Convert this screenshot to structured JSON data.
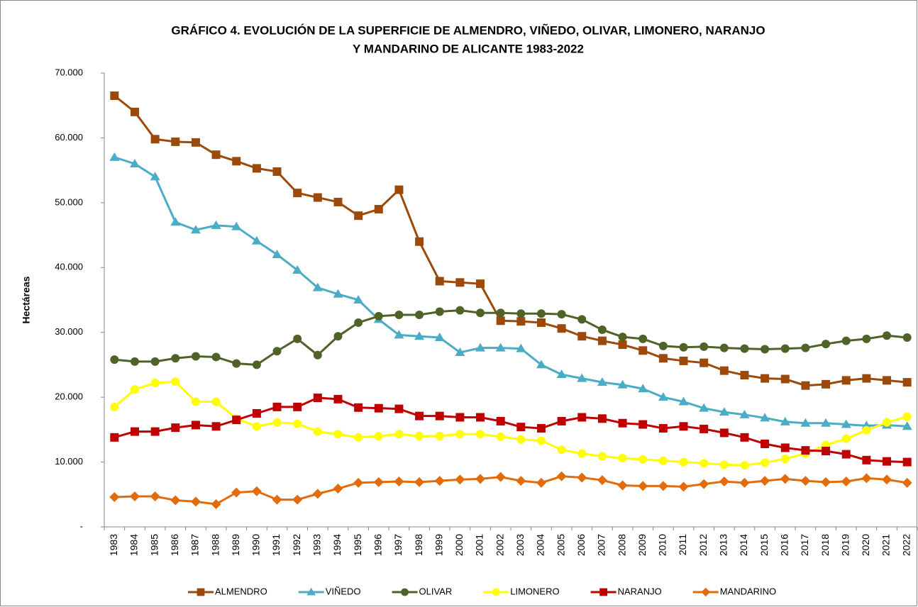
{
  "chart_data": {
    "type": "line",
    "title": [
      "GRÁFICO 4. EVOLUCIÓN DE LA SUPERFICIE DE ALMENDRO, VIÑEDO, OLIVAR, LIMONERO, NARANJO",
      "Y MANDARINO DE ALICANTE 1983-2022"
    ],
    "y_label": "Hectáreas",
    "categories": [
      "1983",
      "1984",
      "1985",
      "1986",
      "1987",
      "1988",
      "1989",
      "1990",
      "1991",
      "1992",
      "1993",
      "1994",
      "1995",
      "1996",
      "1997",
      "1998",
      "1999",
      "2000",
      "2001",
      "2002",
      "2003",
      "2004",
      "2005",
      "2006",
      "2007",
      "2008",
      "2009",
      "2010",
      "2011",
      "2012",
      "2013",
      "2014",
      "2015",
      "2016",
      "2017",
      "2018",
      "2019",
      "2020",
      "2021",
      "2022"
    ],
    "ylim": [
      0,
      70000
    ],
    "yticks": [
      {
        "value": 0,
        "label": "-"
      },
      {
        "value": 10000,
        "label": "10.000"
      },
      {
        "value": 20000,
        "label": "20.000"
      },
      {
        "value": 30000,
        "label": "30.000"
      },
      {
        "value": 40000,
        "label": "40.000"
      },
      {
        "value": 50000,
        "label": "50.000"
      },
      {
        "value": 60000,
        "label": "60.000"
      },
      {
        "value": 70000,
        "label": "70.000"
      }
    ],
    "grid": false,
    "legend": "bottom",
    "series": [
      {
        "name": "ALMENDRO",
        "color": "#9c4a0c",
        "marker": "square",
        "values": [
          66500,
          64000,
          59800,
          59400,
          59300,
          57400,
          56400,
          55300,
          54800,
          51500,
          50800,
          50100,
          48000,
          49000,
          52000,
          44000,
          37900,
          37700,
          37500,
          31800,
          31700,
          31500,
          30600,
          29400,
          28700,
          28100,
          27200,
          26000,
          25600,
          25300,
          24100,
          23400,
          22900,
          22800,
          21800,
          22000,
          22600,
          22900,
          22600,
          22300
        ]
      },
      {
        "name": "VIÑEDO",
        "color": "#4bacc6",
        "marker": "triangle",
        "values": [
          57000,
          56000,
          54000,
          47000,
          45800,
          46500,
          46300,
          44100,
          42000,
          39600,
          36900,
          35900,
          35000,
          32000,
          29600,
          29400,
          29200,
          26900,
          27600,
          27600,
          27500,
          25000,
          23500,
          22900,
          22300,
          21900,
          21300,
          20000,
          19300,
          18300,
          17700,
          17300,
          16800,
          16200,
          16000,
          16000,
          15800,
          15600,
          15700,
          15500
        ]
      },
      {
        "name": "OLIVAR",
        "color": "#4f6228",
        "marker": "circle",
        "values": [
          25800,
          25500,
          25500,
          26000,
          26300,
          26200,
          25200,
          25000,
          27100,
          29000,
          26500,
          29400,
          31500,
          32500,
          32700,
          32700,
          33200,
          33400,
          33000,
          33000,
          32900,
          32900,
          32800,
          32000,
          30400,
          29300,
          29000,
          27900,
          27700,
          27800,
          27600,
          27500,
          27400,
          27500,
          27600,
          28200,
          28700,
          29000,
          29500,
          29200
        ]
      },
      {
        "name": "LIMONERO",
        "color": "#ffff00",
        "marker": "circle",
        "values": [
          18500,
          21200,
          22200,
          22400,
          19300,
          19300,
          16700,
          15500,
          16100,
          15900,
          14700,
          14300,
          13800,
          14000,
          14300,
          14000,
          14000,
          14300,
          14300,
          13900,
          13500,
          13300,
          11900,
          11300,
          10900,
          10600,
          10400,
          10200,
          10000,
          9800,
          9600,
          9500,
          9900,
          10500,
          11300,
          12600,
          13600,
          14900,
          16100,
          17000
        ]
      },
      {
        "name": "NARANJO",
        "color": "#c00000",
        "marker": "square",
        "values": [
          13800,
          14700,
          14700,
          15300,
          15700,
          15500,
          16500,
          17500,
          18500,
          18500,
          19900,
          19700,
          18400,
          18300,
          18200,
          17100,
          17100,
          16900,
          16900,
          16300,
          15400,
          15200,
          16300,
          16900,
          16700,
          16000,
          15800,
          15200,
          15500,
          15100,
          14500,
          13800,
          12800,
          12200,
          11800,
          11700,
          11200,
          10300,
          10100,
          10000
        ]
      },
      {
        "name": "MANDARINO",
        "color": "#e36c0a",
        "marker": "diamond",
        "values": [
          4600,
          4700,
          4700,
          4100,
          3900,
          3500,
          5300,
          5500,
          4200,
          4200,
          5100,
          5900,
          6800,
          6900,
          7000,
          6900,
          7100,
          7300,
          7400,
          7700,
          7100,
          6800,
          7800,
          7600,
          7200,
          6400,
          6300,
          6300,
          6200,
          6600,
          7000,
          6800,
          7100,
          7400,
          7100,
          6900,
          7000,
          7500,
          7300,
          6800
        ]
      }
    ]
  }
}
